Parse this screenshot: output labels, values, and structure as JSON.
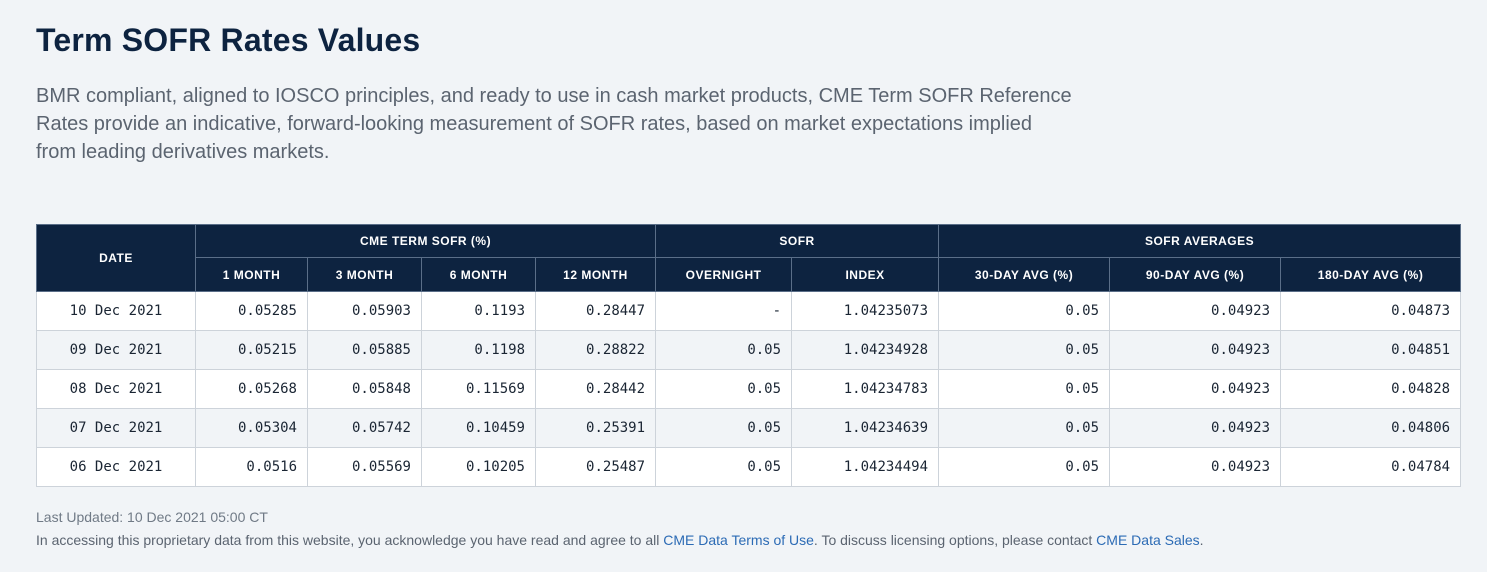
{
  "page": {
    "title": "Term SOFR Rates Values",
    "description": "BMR compliant, aligned to IOSCO principles, and ready to use in cash market products, CME Term SOFR Reference Rates provide an indicative, forward-looking measurement of SOFR rates, based on market expectations implied from leading derivatives markets."
  },
  "table": {
    "groups": {
      "date": "DATE",
      "term": "CME TERM SOFR (%)",
      "sofr": "SOFR",
      "averages": "SOFR AVERAGES"
    },
    "columns": [
      "1 MONTH",
      "3 MONTH",
      "6 MONTH",
      "12 MONTH",
      "OVERNIGHT",
      "INDEX",
      "30-DAY AVG (%)",
      "90-DAY AVG (%)",
      "180-DAY AVG (%)"
    ],
    "rows": [
      [
        "10 Dec 2021",
        "0.05285",
        "0.05903",
        "0.1193",
        "0.28447",
        "-",
        "1.04235073",
        "0.05",
        "0.04923",
        "0.04873"
      ],
      [
        "09 Dec 2021",
        "0.05215",
        "0.05885",
        "0.1198",
        "0.28822",
        "0.05",
        "1.04234928",
        "0.05",
        "0.04923",
        "0.04851"
      ],
      [
        "08 Dec 2021",
        "0.05268",
        "0.05848",
        "0.11569",
        "0.28442",
        "0.05",
        "1.04234783",
        "0.05",
        "0.04923",
        "0.04828"
      ],
      [
        "07 Dec 2021",
        "0.05304",
        "0.05742",
        "0.10459",
        "0.25391",
        "0.05",
        "1.04234639",
        "0.05",
        "0.04923",
        "0.04806"
      ],
      [
        "06 Dec 2021",
        "0.0516",
        "0.05569",
        "0.10205",
        "0.25487",
        "0.05",
        "1.04234494",
        "0.05",
        "0.04923",
        "0.04784"
      ]
    ]
  },
  "footer": {
    "last_updated": "Last Updated: 10 Dec 2021 05:00 CT",
    "note_prefix": "In accessing this proprietary data from this website, you acknowledge you have read and agree to all ",
    "terms_link": "CME Data Terms of Use",
    "note_middle": ". To discuss licensing options, please contact ",
    "sales_link": "CME Data Sales",
    "note_suffix": "."
  }
}
